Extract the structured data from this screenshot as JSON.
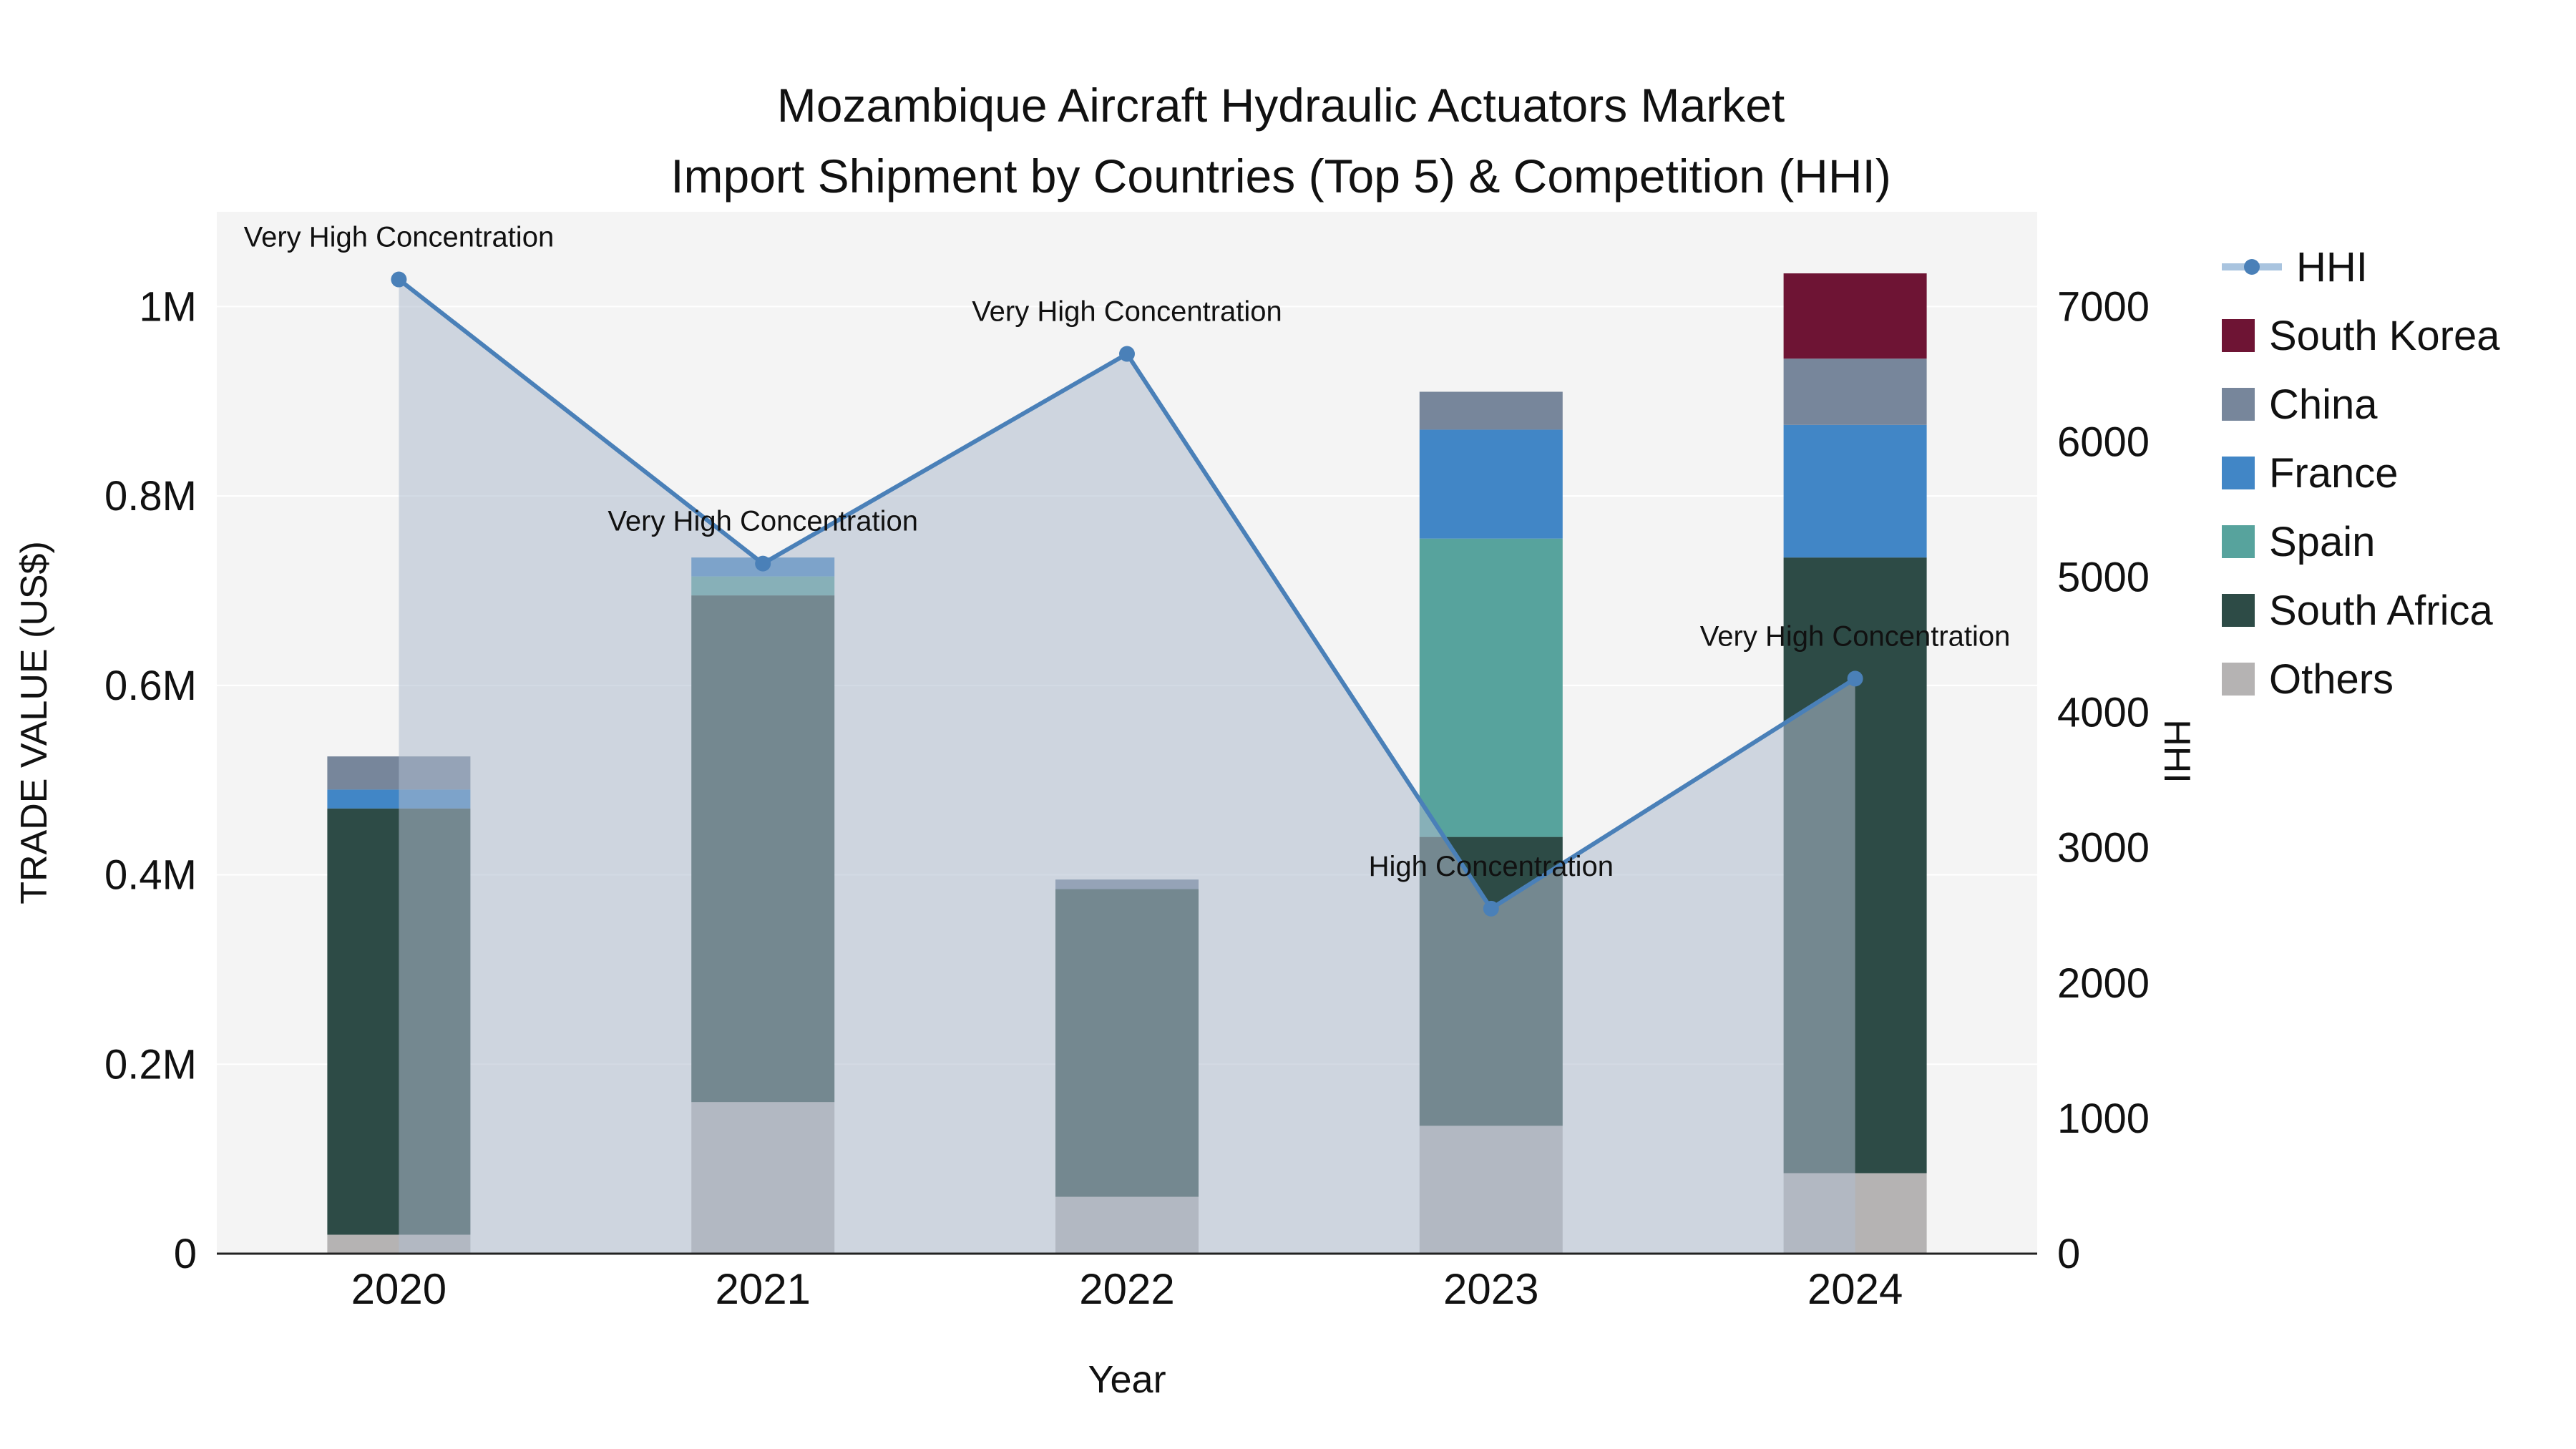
{
  "title": {
    "line1": "Mozambique Aircraft Hydraulic Actuators Market",
    "line2": "Import Shipment by Countries (Top 5) & Competition (HHI)"
  },
  "axes": {
    "y_left": {
      "label": "TRADE VALUE (US$)",
      "max": 1100000,
      "ticks": [
        {
          "v": 0,
          "label": "0"
        },
        {
          "v": 200000,
          "label": "0.2M"
        },
        {
          "v": 400000,
          "label": "0.4M"
        },
        {
          "v": 600000,
          "label": "0.6M"
        },
        {
          "v": 800000,
          "label": "0.8M"
        },
        {
          "v": 1000000,
          "label": "1M"
        }
      ]
    },
    "y_right": {
      "label": "HHI",
      "max": 7700,
      "ticks": [
        {
          "v": 0,
          "label": "0"
        },
        {
          "v": 1000,
          "label": "1000"
        },
        {
          "v": 2000,
          "label": "2000"
        },
        {
          "v": 3000,
          "label": "3000"
        },
        {
          "v": 4000,
          "label": "4000"
        },
        {
          "v": 5000,
          "label": "5000"
        },
        {
          "v": 6000,
          "label": "6000"
        },
        {
          "v": 7000,
          "label": "7000"
        }
      ]
    },
    "x": {
      "label": "Year",
      "categories": [
        "2020",
        "2021",
        "2022",
        "2023",
        "2024"
      ]
    }
  },
  "chart_data": {
    "type": "combo-stacked-bar-line",
    "categories": [
      "2020",
      "2021",
      "2022",
      "2023",
      "2024"
    ],
    "bar_unit": "US$",
    "bars": [
      {
        "name": "Others",
        "color": "#b5b3b3",
        "values": [
          20000,
          160000,
          60000,
          135000,
          85000
        ]
      },
      {
        "name": "South Africa",
        "color": "#2d4b46",
        "values": [
          450000,
          535000,
          325000,
          305000,
          650000
        ]
      },
      {
        "name": "Spain",
        "color": "#57a39d",
        "values": [
          0,
          20000,
          0,
          315000,
          0
        ]
      },
      {
        "name": "France",
        "color": "#4186c6",
        "values": [
          20000,
          20000,
          0,
          115000,
          140000
        ]
      },
      {
        "name": "China",
        "color": "#77869b",
        "values": [
          35000,
          0,
          10000,
          40000,
          70000
        ]
      },
      {
        "name": "South Korea",
        "color": "#6e1434",
        "values": [
          0,
          0,
          0,
          0,
          90000
        ]
      }
    ],
    "line": {
      "name": "HHI",
      "color": "#4a80b8",
      "area_color": "#aebcce",
      "area_opacity": 0.55,
      "values": [
        7200,
        5100,
        6650,
        2550,
        4250
      ]
    },
    "annotations": [
      "Very High Concentration",
      "Very High Concentration",
      "Very High Concentration",
      "High Concentration",
      "Very High Concentration"
    ],
    "plot_background": "#f4f4f4",
    "grid_color": "#ffffff"
  },
  "legend": {
    "items": [
      {
        "label": "HHI",
        "type": "line",
        "line_color": "#a9c4df",
        "dot_color": "#4a80b8"
      },
      {
        "label": "South Korea",
        "type": "square",
        "color": "#6e1434"
      },
      {
        "label": "China",
        "type": "square",
        "color": "#77869b"
      },
      {
        "label": "France",
        "type": "square",
        "color": "#4186c6"
      },
      {
        "label": "Spain",
        "type": "square",
        "color": "#57a39d"
      },
      {
        "label": "South Africa",
        "type": "square",
        "color": "#2d4b46"
      },
      {
        "label": "Others",
        "type": "square",
        "color": "#b5b3b3"
      }
    ]
  }
}
